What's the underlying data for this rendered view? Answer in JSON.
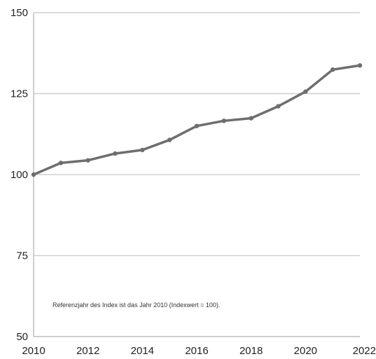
{
  "chart_data": {
    "type": "line",
    "x": [
      2010,
      2011,
      2012,
      2013,
      2014,
      2015,
      2016,
      2017,
      2018,
      2019,
      2020,
      2021,
      2022
    ],
    "series": [
      {
        "values": [
          100,
          103.6,
          104.4,
          106.5,
          107.6,
          110.7,
          115.0,
          116.6,
          117.4,
          121.1,
          125.6,
          132.4,
          133.7
        ]
      }
    ],
    "xlim": [
      2010,
      2022
    ],
    "ylim": [
      50,
      150
    ],
    "x_ticks": [
      "2010",
      "2012",
      "2014",
      "2016",
      "2018",
      "2020",
      "2022"
    ],
    "y_ticks": [
      "50",
      "75",
      "100",
      "125",
      "150"
    ],
    "annotation": "Referenzjahr des Index ist das Jahr 2010 (Indexwert = 100).",
    "grid": "horizontal",
    "line_color": "#6e6e6e",
    "grid_color": "#cfcfcf",
    "axis_color": "#bdbdbd"
  }
}
